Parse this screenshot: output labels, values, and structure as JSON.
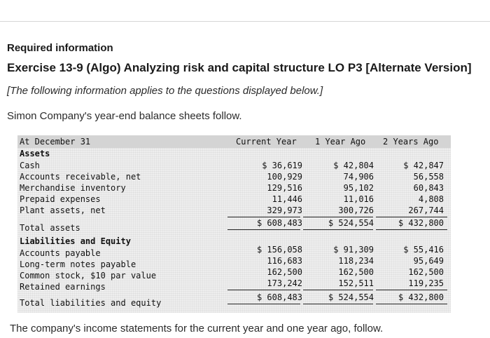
{
  "heading": {
    "required": "Required information",
    "exercise_title": "Exercise 13-9 (Algo) Analyzing risk and capital structure LO P3 [Alternate Version]",
    "note": "[The following information applies to the questions displayed below.]",
    "intro": "Simon Company's year-end balance sheets follow."
  },
  "table": {
    "header_label": "At December 31",
    "columns": [
      "Current Year",
      "1 Year Ago",
      "2 Years Ago"
    ],
    "assets_heading": "Assets",
    "assets": [
      {
        "label": "Cash",
        "values": [
          "$ 36,619",
          "$ 42,804",
          "$ 42,847"
        ]
      },
      {
        "label": "Accounts receivable, net",
        "values": [
          "100,929",
          "74,906",
          "56,558"
        ]
      },
      {
        "label": "Merchandise inventory",
        "values": [
          "129,516",
          "95,102",
          "60,843"
        ]
      },
      {
        "label": "Prepaid expenses",
        "values": [
          "11,446",
          "11,016",
          "4,808"
        ]
      },
      {
        "label": "Plant assets, net",
        "values": [
          "329,973",
          "300,726",
          "267,744"
        ]
      }
    ],
    "total_assets": {
      "label": "Total assets",
      "values": [
        "$ 608,483",
        "$ 524,554",
        "$ 432,800"
      ]
    },
    "liab_heading": "Liabilities and Equity",
    "liabilities": [
      {
        "label": "Accounts payable",
        "values": [
          "$ 156,058",
          "$ 91,309",
          "$ 55,416"
        ]
      },
      {
        "label": "Long-term notes payable",
        "values": [
          "116,683",
          "118,234",
          "95,649"
        ]
      },
      {
        "label": "Common stock, $10 par value",
        "values": [
          "162,500",
          "162,500",
          "162,500"
        ]
      },
      {
        "label": "Retained earnings",
        "values": [
          "173,242",
          "152,511",
          "119,235"
        ]
      }
    ],
    "total_liab": {
      "label": "Total liabilities and equity",
      "values": [
        "$ 608,483",
        "$ 524,554",
        "$ 432,800"
      ]
    }
  },
  "footer": {
    "followup": "The company's income statements for the current year and one year ago, follow."
  }
}
